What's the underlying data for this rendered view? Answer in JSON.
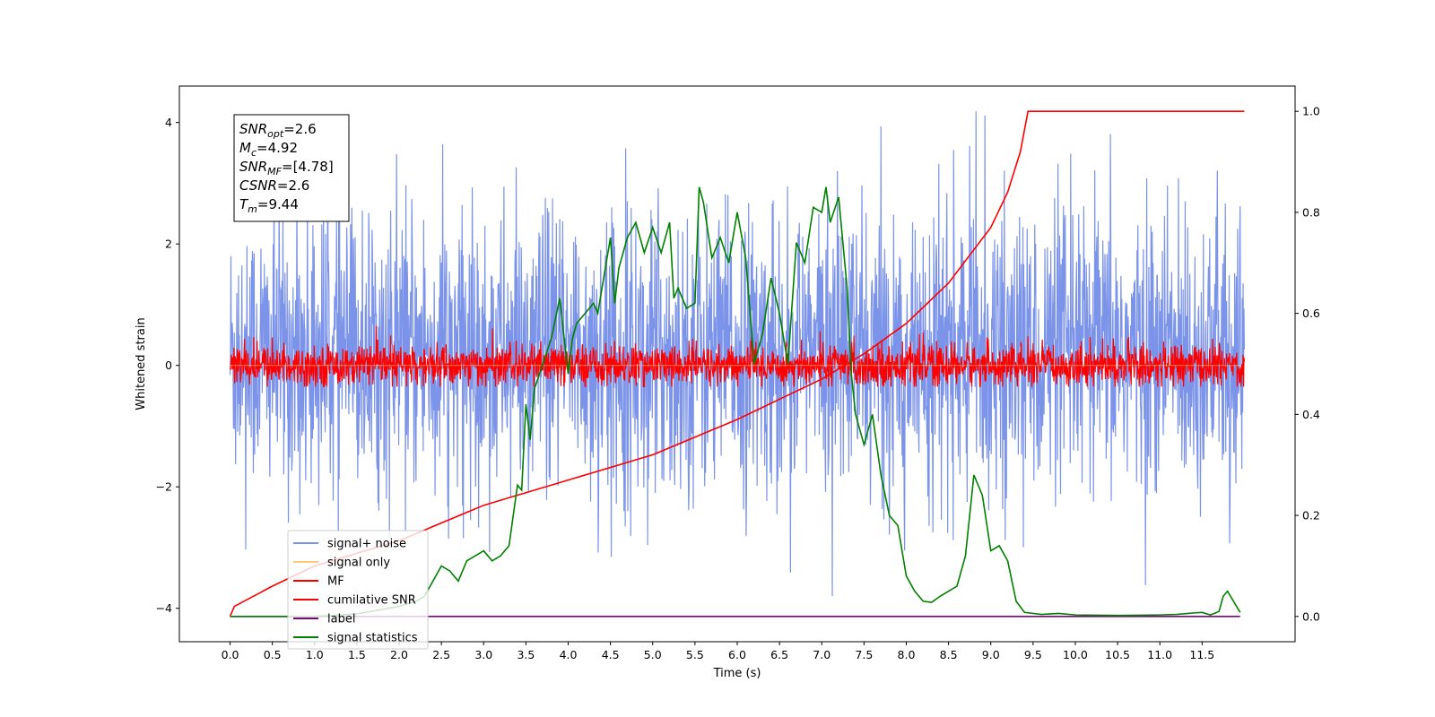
{
  "chart_data": {
    "type": "line",
    "xlabel": "Time (s)",
    "ylabel": "Whitened strain",
    "xlim": [
      -0.6,
      12.6
    ],
    "ylim_left": [
      -4.55,
      4.6
    ],
    "ylim_right": [
      -0.05,
      1.05
    ],
    "x_ticks": [
      "0.0",
      "0.5",
      "1.0",
      "1.5",
      "2.0",
      "2.5",
      "3.0",
      "3.5",
      "4.0",
      "4.5",
      "5.0",
      "5.5",
      "6.0",
      "6.5",
      "7.0",
      "7.5",
      "8.0",
      "8.5",
      "9.0",
      "9.5",
      "10.0",
      "10.5",
      "11.0",
      "11.5"
    ],
    "y_ticks_left": [
      4,
      2,
      0,
      -2,
      -4
    ],
    "y_ticks_right": [
      "0.0",
      "0.2",
      "0.4",
      "0.6",
      "0.8",
      "1.0"
    ],
    "duration": 12,
    "merger_time": 9.44,
    "annotation": [
      {
        "main": "SNR",
        "sub": "opt",
        "rest": "=2.6"
      },
      {
        "main": "M",
        "sub": "c",
        "rest": "=4.92"
      },
      {
        "main": "SNR",
        "sub": "MF",
        "rest": "=[4.78]"
      },
      {
        "main": "CSNR",
        "sub": "",
        "rest": "=2.6"
      },
      {
        "main": "T",
        "sub": "m",
        "rest": "=9.44"
      }
    ],
    "legend_position": "lower-left",
    "series": [
      {
        "name": "signal+ noise",
        "color": "#7b93e8",
        "axis": "left",
        "style": "noise band, approx -3.8 to 4.2"
      },
      {
        "name": "signal only",
        "color": "#ffc87a",
        "axis": "left"
      },
      {
        "name": "MF",
        "color": "#ff0000",
        "axis": "left",
        "style": "noise band, approx -0.35 to 0.9"
      },
      {
        "name": "cumilative SNR",
        "color": "#ff0000",
        "axis": "right",
        "x": [
          0.0,
          0.05,
          0.5,
          1.0,
          2.0,
          3.0,
          4.0,
          5.0,
          6.0,
          7.0,
          7.5,
          8.0,
          8.5,
          9.0,
          9.2,
          9.35,
          9.44,
          12.0
        ],
        "y": [
          0.0,
          0.02,
          0.06,
          0.1,
          0.15,
          0.22,
          0.27,
          0.32,
          0.39,
          0.47,
          0.52,
          0.58,
          0.66,
          0.77,
          0.84,
          0.92,
          1.0,
          1.0
        ]
      },
      {
        "name": "label",
        "color": "#800080",
        "axis": "right",
        "x": [
          0.0,
          11.95
        ],
        "y": [
          0.0,
          0.0
        ]
      },
      {
        "name": "signal statistics",
        "color": "#008000",
        "axis": "right",
        "x": [
          0.0,
          0.5,
          1.0,
          1.5,
          2.0,
          2.2,
          2.3,
          2.4,
          2.5,
          2.6,
          2.7,
          2.8,
          2.9,
          3.0,
          3.1,
          3.2,
          3.3,
          3.4,
          3.45,
          3.5,
          3.55,
          3.6,
          3.7,
          3.8,
          3.9,
          4.0,
          4.05,
          4.1,
          4.2,
          4.3,
          4.35,
          4.4,
          4.5,
          4.55,
          4.6,
          4.7,
          4.8,
          4.9,
          5.0,
          5.1,
          5.2,
          5.25,
          5.3,
          5.4,
          5.5,
          5.55,
          5.6,
          5.7,
          5.8,
          5.9,
          6.0,
          6.1,
          6.2,
          6.3,
          6.4,
          6.5,
          6.6,
          6.7,
          6.8,
          6.9,
          7.0,
          7.05,
          7.1,
          7.2,
          7.3,
          7.35,
          7.4,
          7.5,
          7.6,
          7.7,
          7.8,
          7.9,
          8.0,
          8.1,
          8.2,
          8.3,
          8.4,
          8.5,
          8.6,
          8.7,
          8.8,
          8.9,
          9.0,
          9.1,
          9.2,
          9.3,
          9.4,
          9.6,
          9.8,
          10.0,
          10.5,
          11.0,
          11.2,
          11.4,
          11.5,
          11.6,
          11.7,
          11.75,
          11.8,
          11.95
        ],
        "y": [
          0.0,
          0.0,
          0.0,
          0.005,
          0.02,
          0.03,
          0.04,
          0.07,
          0.1,
          0.09,
          0.07,
          0.11,
          0.12,
          0.13,
          0.11,
          0.12,
          0.14,
          0.26,
          0.25,
          0.42,
          0.35,
          0.45,
          0.5,
          0.55,
          0.63,
          0.48,
          0.55,
          0.58,
          0.6,
          0.62,
          0.6,
          0.65,
          0.75,
          0.62,
          0.69,
          0.75,
          0.78,
          0.72,
          0.77,
          0.72,
          0.78,
          0.63,
          0.65,
          0.61,
          0.62,
          0.85,
          0.82,
          0.71,
          0.75,
          0.7,
          0.8,
          0.71,
          0.5,
          0.56,
          0.67,
          0.6,
          0.5,
          0.74,
          0.7,
          0.81,
          0.8,
          0.85,
          0.78,
          0.83,
          0.65,
          0.48,
          0.4,
          0.34,
          0.4,
          0.28,
          0.2,
          0.18,
          0.08,
          0.05,
          0.03,
          0.028,
          0.04,
          0.05,
          0.06,
          0.12,
          0.28,
          0.24,
          0.13,
          0.14,
          0.11,
          0.03,
          0.008,
          0.004,
          0.006,
          0.003,
          0.002,
          0.003,
          0.004,
          0.007,
          0.008,
          0.003,
          0.01,
          0.04,
          0.05,
          0.008
        ]
      }
    ]
  }
}
